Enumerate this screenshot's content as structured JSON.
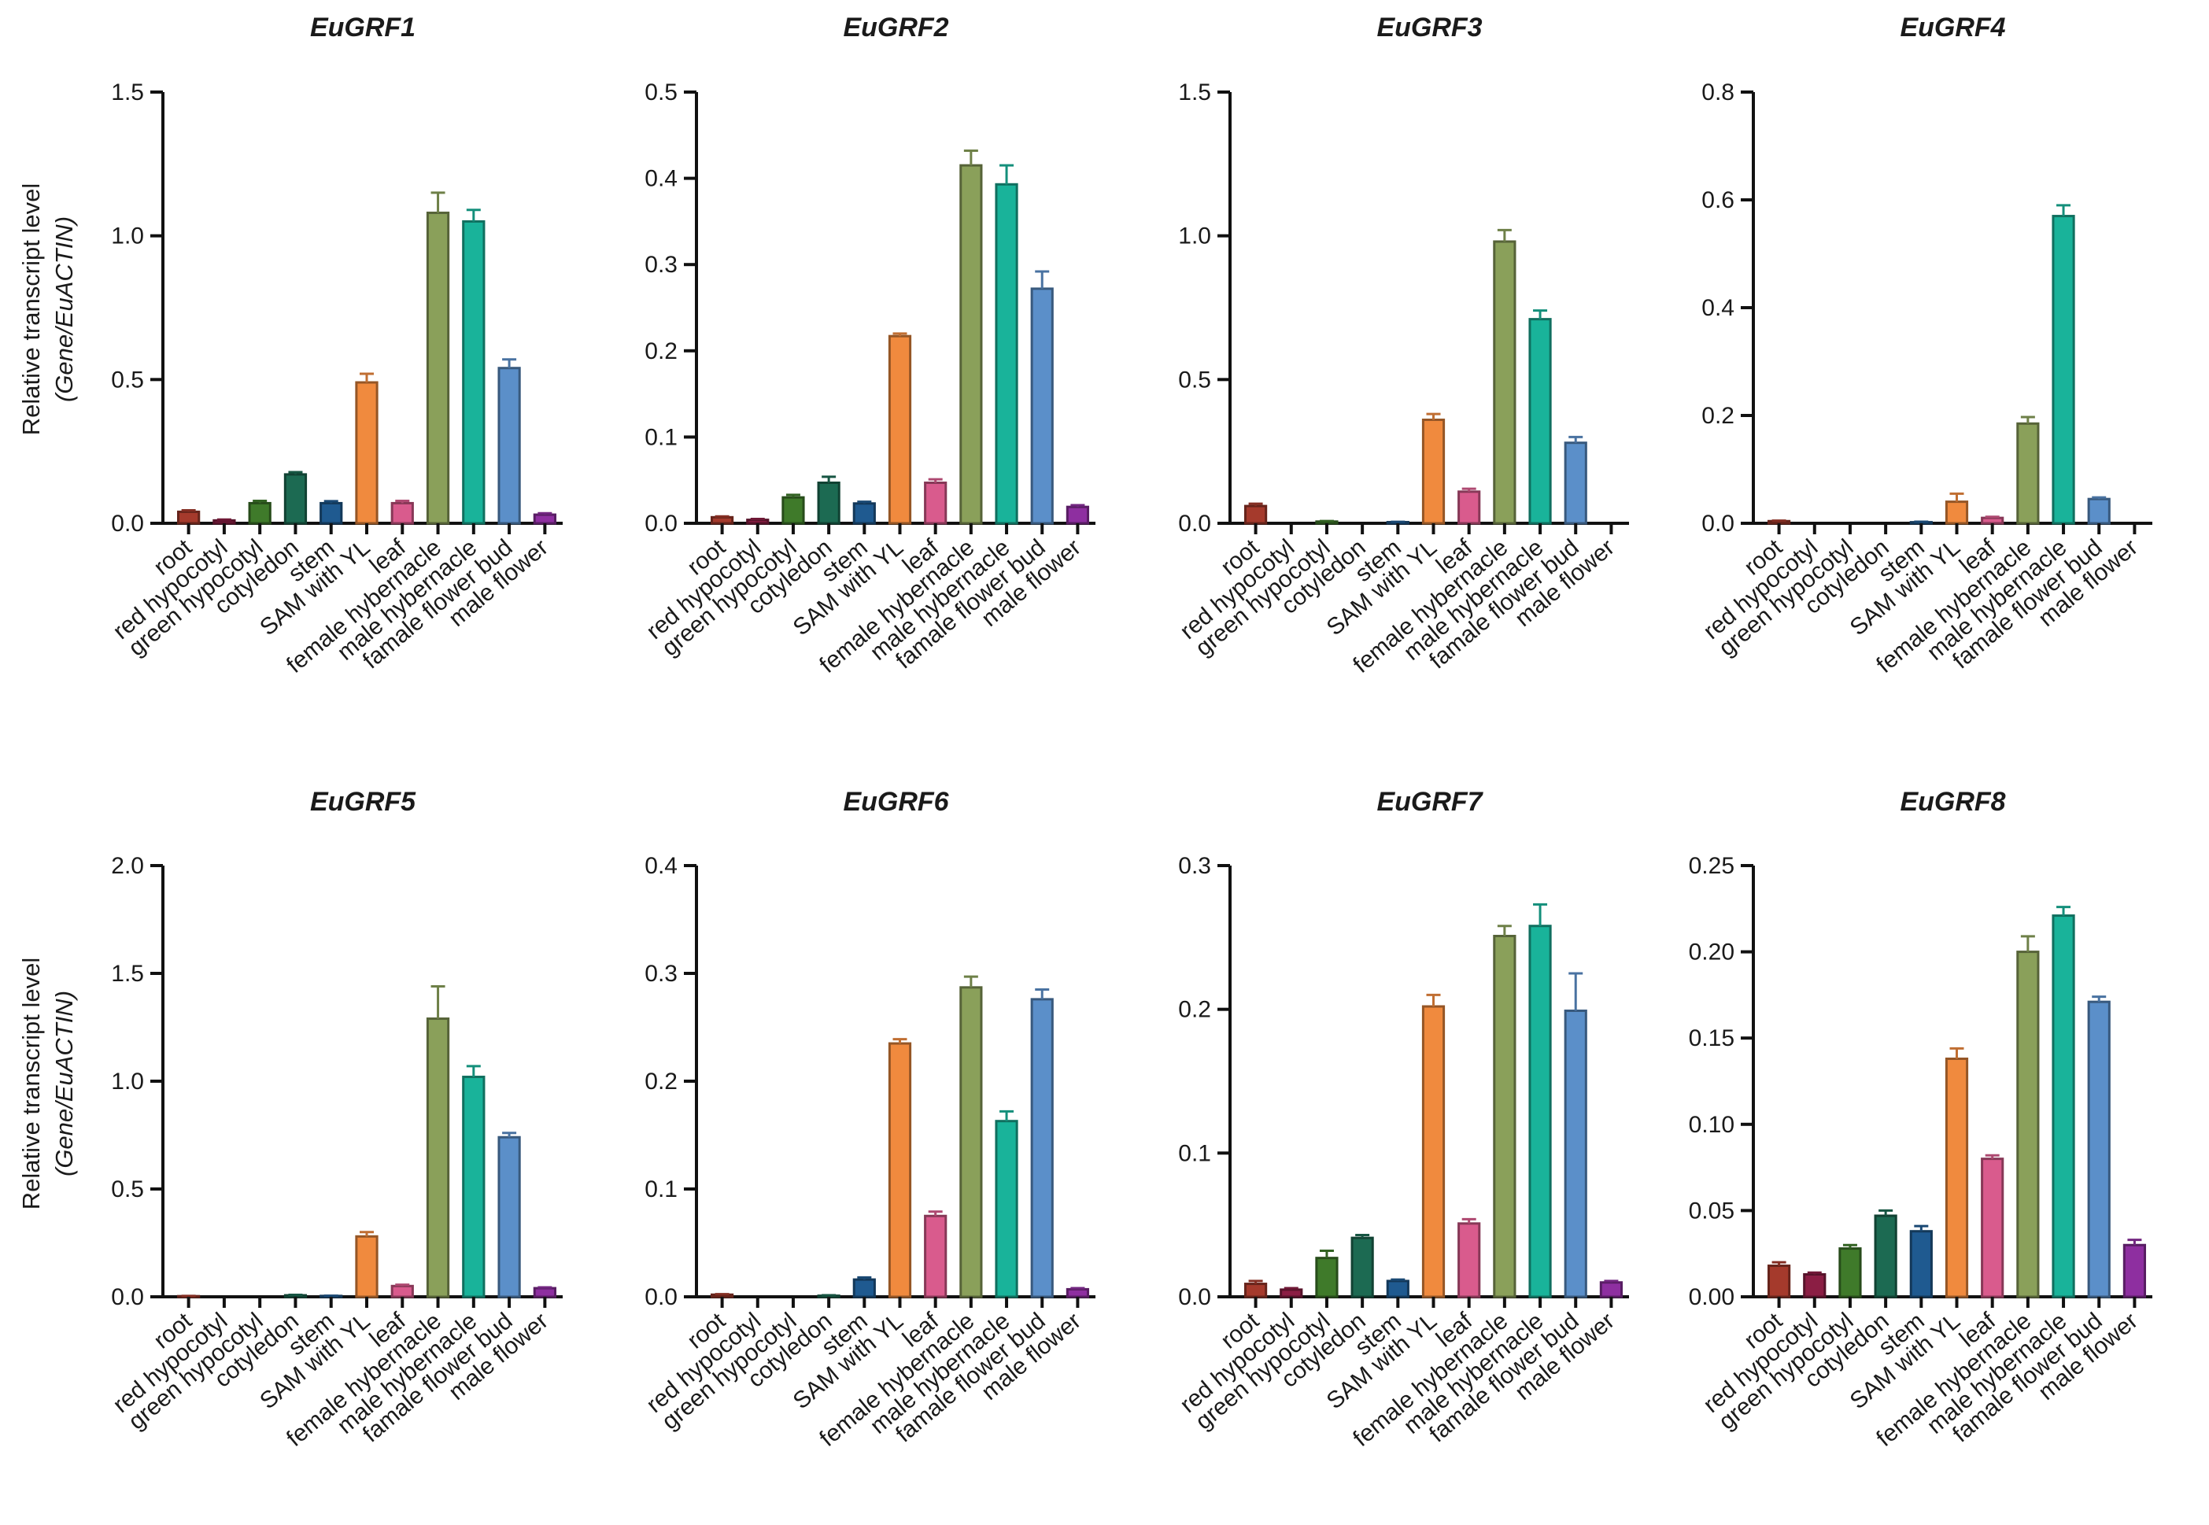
{
  "figure": {
    "ylabel_line1": "Relative transcript level",
    "ylabel_line2": "(Gene/EuACTIN)"
  },
  "colors": [
    "#a53a2c",
    "#8b1e44",
    "#3f7a2a",
    "#1c6a52",
    "#1f5a90",
    "#f08a3e",
    "#d95b8d",
    "#8aa05a",
    "#19b39a",
    "#5b8fc9",
    "#8e2fa0"
  ],
  "chart_data": [
    {
      "type": "bar",
      "title": "EuGRF1",
      "categories": [
        "root",
        "red hypocotyl",
        "green hypocotyl",
        "cotyledon",
        "stem",
        "SAM with YL",
        "leaf",
        "female hybernacle",
        "male hybernacle",
        "famale flower bud",
        "male flower"
      ],
      "values": [
        0.04,
        0.01,
        0.07,
        0.17,
        0.07,
        0.49,
        0.07,
        1.08,
        1.05,
        0.54,
        0.03
      ],
      "errors": [
        0.005,
        0.003,
        0.008,
        0.008,
        0.007,
        0.03,
        0.008,
        0.07,
        0.04,
        0.03,
        0.005
      ],
      "ylim": [
        0,
        1.5
      ],
      "yticks": [
        "0.0",
        "0.5",
        "1.0",
        "1.5"
      ],
      "ylabel": "Relative transcript level (Gene/EuACTIN)"
    },
    {
      "type": "bar",
      "title": "EuGRF2",
      "categories": [
        "root",
        "red hypocotyl",
        "green hypocotyl",
        "cotyledon",
        "stem",
        "SAM with YL",
        "leaf",
        "female hybernacle",
        "male hybernacle",
        "famale flower bud",
        "male flower"
      ],
      "values": [
        0.007,
        0.004,
        0.03,
        0.047,
        0.023,
        0.217,
        0.047,
        0.415,
        0.393,
        0.272,
        0.019
      ],
      "errors": [
        0.001,
        0.001,
        0.003,
        0.007,
        0.002,
        0.003,
        0.004,
        0.017,
        0.022,
        0.02,
        0.002
      ],
      "ylim": [
        0,
        0.5
      ],
      "yticks": [
        "0.0",
        "0.1",
        "0.2",
        "0.3",
        "0.4",
        "0.5"
      ],
      "ylabel": ""
    },
    {
      "type": "bar",
      "title": "EuGRF3",
      "categories": [
        "root",
        "red hypocotyl",
        "green hypocotyl",
        "cotyledon",
        "stem",
        "SAM with YL",
        "leaf",
        "female hybernacle",
        "male hybernacle",
        "famale flower bud",
        "male flower"
      ],
      "values": [
        0.06,
        0.0,
        0.006,
        0.0,
        0.004,
        0.36,
        0.11,
        0.98,
        0.71,
        0.28,
        0.0
      ],
      "errors": [
        0.008,
        0.0,
        0.002,
        0.0,
        0.001,
        0.02,
        0.01,
        0.04,
        0.03,
        0.02,
        0.0
      ],
      "ylim": [
        0,
        1.5
      ],
      "yticks": [
        "0.0",
        "0.5",
        "1.0",
        "1.5"
      ],
      "ylabel": ""
    },
    {
      "type": "bar",
      "title": "EuGRF4",
      "categories": [
        "root",
        "red hypocotyl",
        "green hypocotyl",
        "cotyledon",
        "stem",
        "SAM with YL",
        "leaf",
        "female hybernacle",
        "male hybernacle",
        "famale flower bud",
        "male flower"
      ],
      "values": [
        0.004,
        0.0,
        0.0,
        0.0,
        0.002,
        0.04,
        0.01,
        0.185,
        0.57,
        0.045,
        0.0
      ],
      "errors": [
        0.001,
        0.0,
        0.0,
        0.0,
        0.001,
        0.015,
        0.002,
        0.012,
        0.02,
        0.003,
        0.0
      ],
      "ylim": [
        0,
        0.8
      ],
      "yticks": [
        "0.0",
        "0.2",
        "0.4",
        "0.6",
        "0.8"
      ],
      "ylabel": ""
    },
    {
      "type": "bar",
      "title": "EuGRF5",
      "categories": [
        "root",
        "red hypocotyl",
        "green hypocotyl",
        "cotyledon",
        "stem",
        "SAM with YL",
        "leaf",
        "female hybernacle",
        "male hybernacle",
        "famale flower bud",
        "male flower"
      ],
      "values": [
        0.003,
        0.0,
        0.0,
        0.007,
        0.004,
        0.28,
        0.05,
        1.29,
        1.02,
        0.74,
        0.04
      ],
      "errors": [
        0.001,
        0.0,
        0.0,
        0.002,
        0.001,
        0.02,
        0.006,
        0.15,
        0.05,
        0.02,
        0.004
      ],
      "ylim": [
        0,
        2.0
      ],
      "yticks": [
        "0.0",
        "0.5",
        "1.0",
        "1.5",
        "2.0"
      ],
      "ylabel": "Relative transcript level (Gene/EuACTIN)"
    },
    {
      "type": "bar",
      "title": "EuGRF6",
      "categories": [
        "root",
        "red hypocotyl",
        "green hypocotyl",
        "cotyledon",
        "stem",
        "SAM with YL",
        "leaf",
        "female hybernacle",
        "male hybernacle",
        "famale flower bud",
        "male flower"
      ],
      "values": [
        0.002,
        0.0,
        0.0,
        0.001,
        0.016,
        0.235,
        0.075,
        0.287,
        0.163,
        0.276,
        0.007
      ],
      "errors": [
        0.0005,
        0.0,
        0.0,
        0.0005,
        0.002,
        0.004,
        0.004,
        0.01,
        0.009,
        0.009,
        0.001
      ],
      "ylim": [
        0,
        0.4
      ],
      "yticks": [
        "0.0",
        "0.1",
        "0.2",
        "0.3",
        "0.4"
      ],
      "ylabel": ""
    },
    {
      "type": "bar",
      "title": "EuGRF7",
      "categories": [
        "root",
        "red hypocotyl",
        "green hypocotyl",
        "cotyledon",
        "stem",
        "SAM with YL",
        "leaf",
        "female hybernacle",
        "male hybernacle",
        "famale flower bud",
        "male flower"
      ],
      "values": [
        0.009,
        0.005,
        0.027,
        0.041,
        0.011,
        0.202,
        0.051,
        0.251,
        0.258,
        0.199,
        0.01
      ],
      "errors": [
        0.002,
        0.001,
        0.005,
        0.002,
        0.001,
        0.008,
        0.003,
        0.007,
        0.015,
        0.026,
        0.001
      ],
      "ylim": [
        0,
        0.3
      ],
      "yticks": [
        "0.0",
        "0.1",
        "0.2",
        "0.3"
      ],
      "ylabel": ""
    },
    {
      "type": "bar",
      "title": "EuGRF8",
      "categories": [
        "root",
        "red hypocotyl",
        "green hypocotyl",
        "cotyledon",
        "stem",
        "SAM with YL",
        "leaf",
        "female hybernacle",
        "male hybernacle",
        "famale flower bud",
        "male flower"
      ],
      "values": [
        0.018,
        0.013,
        0.028,
        0.047,
        0.038,
        0.138,
        0.08,
        0.2,
        0.221,
        0.171,
        0.03
      ],
      "errors": [
        0.002,
        0.001,
        0.002,
        0.003,
        0.003,
        0.006,
        0.002,
        0.009,
        0.005,
        0.003,
        0.003
      ],
      "ylim": [
        0,
        0.25
      ],
      "yticks": [
        "0.00",
        "0.05",
        "0.10",
        "0.15",
        "0.20",
        "0.25"
      ],
      "ylabel": ""
    }
  ]
}
